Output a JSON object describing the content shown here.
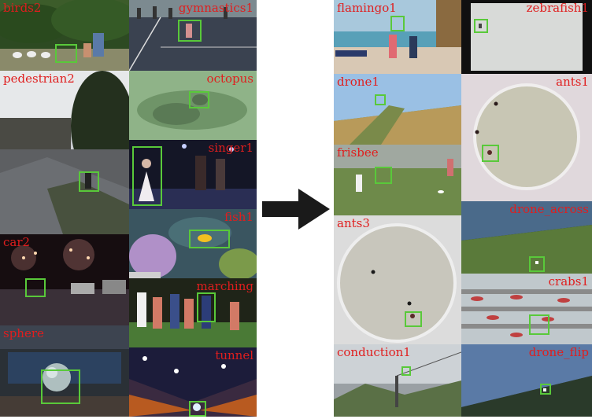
{
  "label_color": "#e01e1e",
  "box_color": "#59c93a",
  "arrow_color": "#1a1a1a",
  "left_panel": [
    {
      "id": "birds2",
      "label": "birds2"
    },
    {
      "id": "gymnastics1",
      "label": "gymnastics1"
    },
    {
      "id": "pedestrian2",
      "label": "pedestrian2"
    },
    {
      "id": "octopus",
      "label": "octopus"
    },
    {
      "id": "singer1",
      "label": "singer1"
    },
    {
      "id": "fish1",
      "label": "fish1"
    },
    {
      "id": "car2",
      "label": "car2"
    },
    {
      "id": "marching",
      "label": "marching"
    },
    {
      "id": "sphere",
      "label": "sphere"
    },
    {
      "id": "tunnel",
      "label": "tunnel"
    }
  ],
  "right_panel": [
    {
      "id": "flamingo1",
      "label": "flamingo1"
    },
    {
      "id": "zebrafish1",
      "label": "zebrafish1"
    },
    {
      "id": "drone1",
      "label": "drone1"
    },
    {
      "id": "ants1",
      "label": "ants1"
    },
    {
      "id": "frisbee",
      "label": "frisbee"
    },
    {
      "id": "drone_across",
      "label": "drone_across"
    },
    {
      "id": "ants3",
      "label": "ants3"
    },
    {
      "id": "crabs1",
      "label": "crabs1"
    },
    {
      "id": "conduction1",
      "label": "conduction1"
    },
    {
      "id": "drone_flip",
      "label": "drone_flip"
    }
  ]
}
